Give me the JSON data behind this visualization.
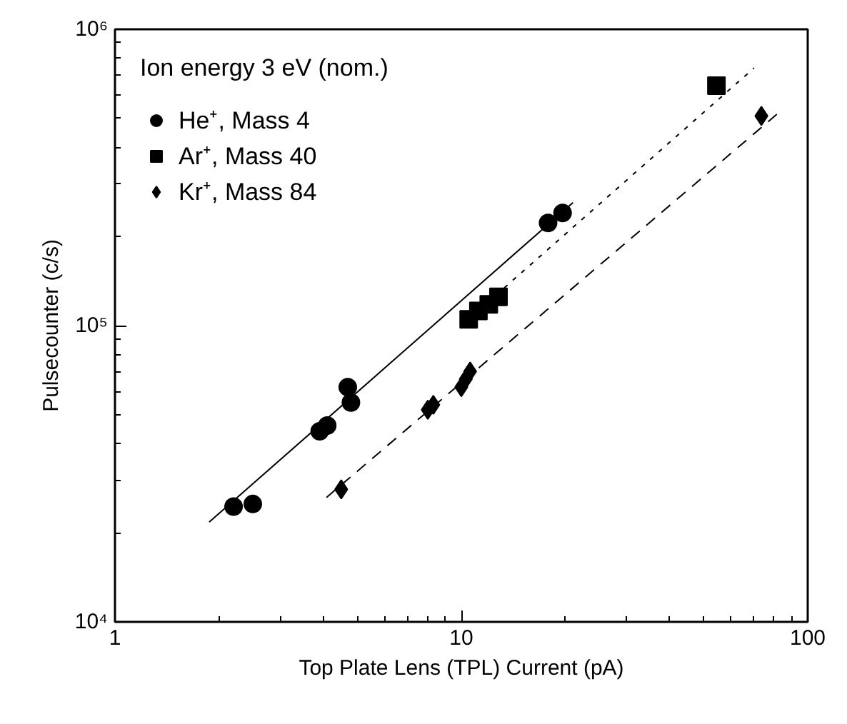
{
  "chart_data": {
    "type": "scatter",
    "xlabel": "Top Plate Lens (TPL) Current (pA)",
    "ylabel": "Pulsecounter (c/s)",
    "legend_title": "Ion energy 3 eV (nom.)",
    "log": "xy",
    "grid": false,
    "legend": "top left",
    "xlim": [
      1,
      100
    ],
    "ylim": [
      10000,
      1000000
    ],
    "xticks": [
      1,
      10,
      100
    ],
    "yticks": [
      {
        "value": 10000,
        "label": "10⁴"
      },
      {
        "value": 100000,
        "label": "10⁵"
      },
      {
        "value": 1000000,
        "label": "10⁶"
      }
    ],
    "series": [
      {
        "name": "He⁺, Mass 4",
        "color": "#000000",
        "marker": "circle",
        "x": [
          2.2,
          2.5,
          3.9,
          4.1,
          4.7,
          4.8,
          17.8,
          19.6
        ],
        "values": [
          24500,
          25000,
          44000,
          46000,
          62000,
          55000,
          222000,
          240000
        ]
      },
      {
        "name": "Ar⁺, Mass 40",
        "color": "#000000",
        "marker": "square",
        "x": [
          10.5,
          11.2,
          12.0,
          12.8,
          54.5
        ],
        "values": [
          105000,
          112000,
          118000,
          125000,
          645000
        ]
      },
      {
        "name": "Kr⁺, Mass 84",
        "color": "#000000",
        "marker": "diamond",
        "x": [
          4.5,
          8.0,
          8.3,
          10.0,
          10.3,
          10.6,
          73.5
        ],
        "values": [
          28000,
          52000,
          54000,
          62000,
          66000,
          70000,
          510000
        ]
      },
      {
        "type": "line",
        "color": "#000000",
        "line_style": "solid",
        "x": [
          1.87,
          21
        ],
        "values": [
          21700,
          260000
        ]
      },
      {
        "type": "line",
        "color": "#000000",
        "line_style": "dotted",
        "x": [
          10,
          70
        ],
        "values": [
          100000,
          740000
        ]
      },
      {
        "type": "line",
        "color": "#000000",
        "line_style": "dashed",
        "x": [
          4.08,
          82
        ],
        "values": [
          26300,
          520000
        ]
      }
    ]
  }
}
